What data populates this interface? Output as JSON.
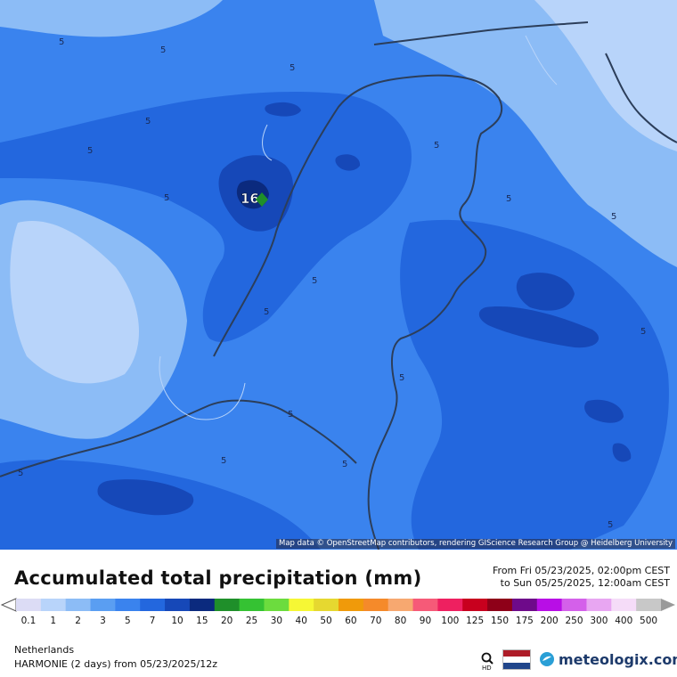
{
  "map": {
    "attribution": "Map data © OpenStreetMap contributors, rendering GIScience Research Group @ Heidelberg University",
    "max_label": "16",
    "contour_value_label": "5"
  },
  "header": {
    "title": "Accumulated total precipitation (mm)",
    "period_from": "From Fri 05/23/2025, 02:00pm CEST",
    "period_to": "to Sun 05/25/2025, 12:00am CEST"
  },
  "legend": {
    "labels": [
      "0.1",
      "1",
      "2",
      "3",
      "5",
      "7",
      "10",
      "15",
      "20",
      "25",
      "30",
      "40",
      "50",
      "60",
      "70",
      "80",
      "90",
      "100",
      "125",
      "150",
      "175",
      "200",
      "250",
      "300",
      "400",
      "500"
    ],
    "colors": [
      "#dcdcf5",
      "#b8d4fa",
      "#8cbcf6",
      "#5a9ef2",
      "#3a83ee",
      "#2367de",
      "#1648b8",
      "#0b2a7e",
      "#1f8f2a",
      "#35c233",
      "#6cdc3e",
      "#f6f735",
      "#e6d830",
      "#f09a0a",
      "#f58a2a",
      "#f7a870",
      "#f65a78",
      "#ee2060",
      "#c8001e",
      "#8e0018",
      "#6e0a8a",
      "#b80ee6",
      "#d460ea",
      "#e8a6f2",
      "#f5dcf8",
      "#c8c8c8"
    ],
    "under_color": "#ffffff",
    "over_color": "#9a9a9a"
  },
  "footer": {
    "region": "Netherlands",
    "model": "HARMONIE (2 days) from 05/23/2025/12z",
    "hd_label": "HD",
    "brand": "meteologix.com"
  },
  "colors": {
    "sea_light": "#5a9ef2",
    "land_mid": "#3a83ee",
    "band_dark": "#2367de",
    "core_dark": "#1648b8",
    "core_darkest": "#0b2a7e",
    "pale": "#8cbcf6",
    "palest": "#b8d4fa",
    "border": "#2c3e5a"
  }
}
